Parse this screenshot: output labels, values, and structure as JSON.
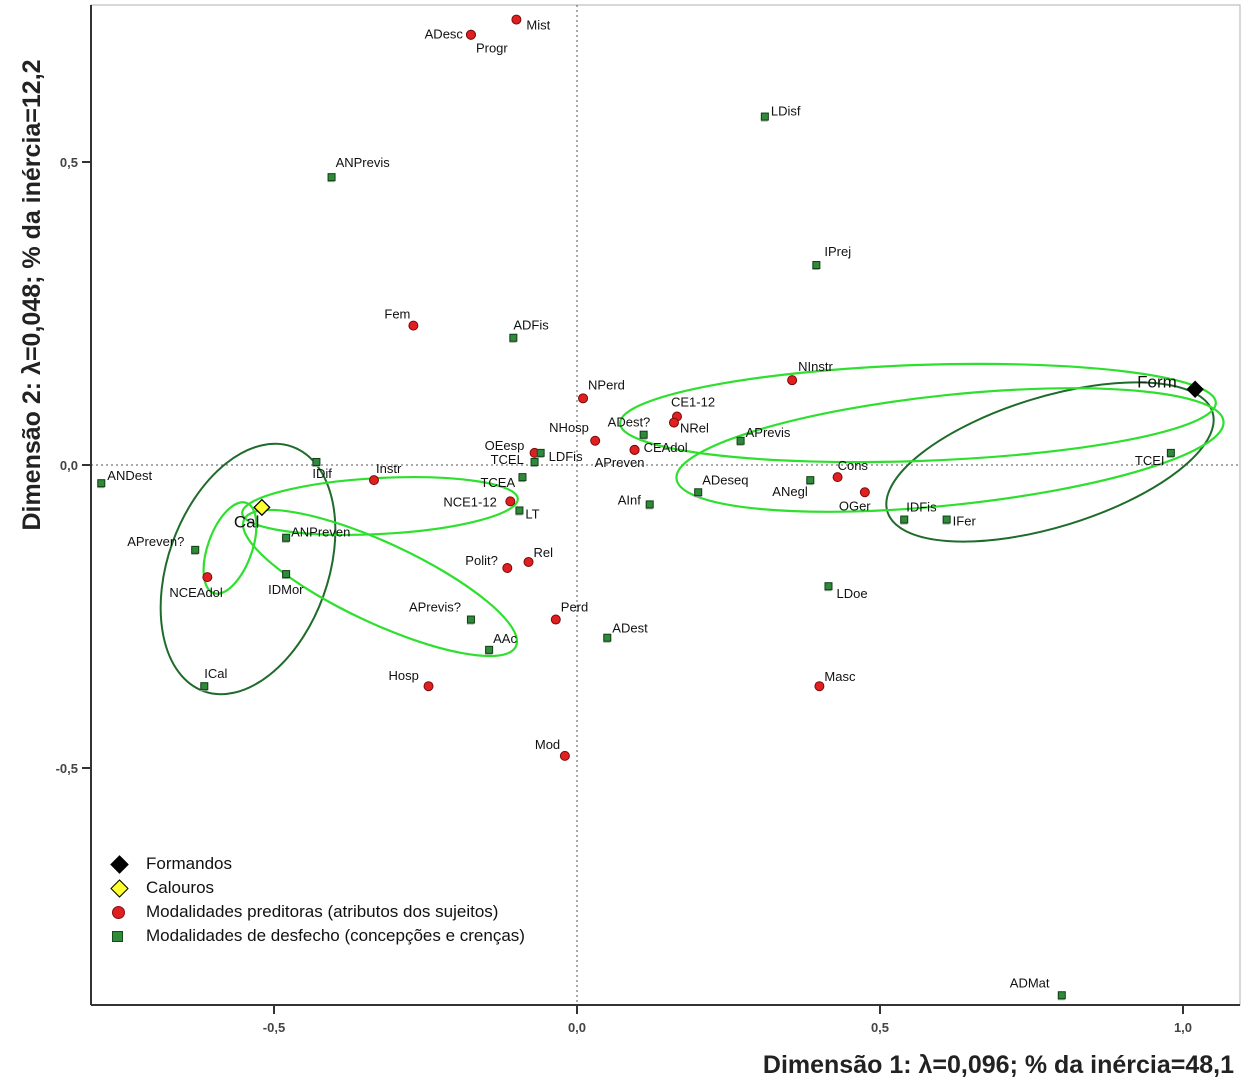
{
  "chart_data": {
    "type": "scatter",
    "xlabel": "Dimensão 1: λ=0,096; % da inércia=48,1",
    "ylabel": "Dimensão 2: λ=0,048; % da inércia=12,2",
    "xlim": [
      -0.8,
      1.1
    ],
    "ylim": [
      -0.9,
      0.76
    ],
    "xticks": [
      {
        "value": -0.5,
        "label": "-0,5"
      },
      {
        "value": 0,
        "label": "0,0"
      },
      {
        "value": 0.5,
        "label": "0,5"
      },
      {
        "value": 1.0,
        "label": "1,0"
      }
    ],
    "yticks": [
      {
        "value": 0.5,
        "label": "0,5"
      },
      {
        "value": 0,
        "label": "0,0"
      },
      {
        "value": -0.5,
        "label": "-0,5"
      }
    ],
    "legend": {
      "position": "bottom-left",
      "items": [
        {
          "label": "Formandos",
          "symbol": "diamond",
          "color": "#000000"
        },
        {
          "label": "Calouros",
          "symbol": "diamond",
          "color": "#ffff33"
        },
        {
          "label": "Modalidades preditoras (atributos dos sujeitos)",
          "symbol": "circle",
          "color": "#e02020"
        },
        {
          "label": "Modalidades de desfecho (concepções e crenças)",
          "symbol": "square",
          "color": "#2f8a3a"
        }
      ]
    },
    "series": [
      {
        "kind": "group",
        "color": "#000000",
        "points": [
          {
            "label": "Form",
            "x": 1.02,
            "y": 0.125
          }
        ]
      },
      {
        "kind": "group",
        "color": "#ffff33",
        "points": [
          {
            "label": "Cal",
            "x": -0.52,
            "y": -0.07
          }
        ]
      },
      {
        "kind": "predictor",
        "color": "#e02020",
        "points": [
          {
            "label": "Mist",
            "x": -0.1,
            "y": 0.735
          },
          {
            "label": "ADesc",
            "x": -0.175,
            "y": 0.71
          },
          {
            "label": "Progr",
            "x": -0.175,
            "y": 0.71
          },
          {
            "label": "Fem",
            "x": -0.27,
            "y": 0.23
          },
          {
            "label": "NPerd",
            "x": 0.01,
            "y": 0.11
          },
          {
            "label": "CE1-12",
            "x": 0.165,
            "y": 0.08
          },
          {
            "label": "NRel",
            "x": 0.16,
            "y": 0.07
          },
          {
            "label": "NInstr",
            "x": 0.355,
            "y": 0.14
          },
          {
            "label": "NHosp",
            "x": 0.03,
            "y": 0.04
          },
          {
            "label": "OEesp",
            "x": -0.07,
            "y": 0.02
          },
          {
            "label": "CEAdol",
            "x": 0.095,
            "y": 0.025
          },
          {
            "label": "APreven",
            "x": 0.095,
            "y": 0.025
          },
          {
            "label": "Instr",
            "x": -0.335,
            "y": -0.025
          },
          {
            "label": "NCE1-12",
            "x": -0.11,
            "y": -0.06
          },
          {
            "label": "Cons",
            "x": 0.43,
            "y": -0.02
          },
          {
            "label": "OGer",
            "x": 0.475,
            "y": -0.045
          },
          {
            "label": "Rel",
            "x": -0.08,
            "y": -0.16
          },
          {
            "label": "Polit?",
            "x": -0.115,
            "y": -0.17
          },
          {
            "label": "NCEAdol",
            "x": -0.61,
            "y": -0.185
          },
          {
            "label": "Perd",
            "x": -0.035,
            "y": -0.255
          },
          {
            "label": "Hosp",
            "x": -0.245,
            "y": -0.365
          },
          {
            "label": "Masc",
            "x": 0.4,
            "y": -0.365
          },
          {
            "label": "Mod",
            "x": -0.02,
            "y": -0.48
          }
        ]
      },
      {
        "kind": "outcome",
        "color": "#2f8a3a",
        "points": [
          {
            "label": "LDisf",
            "x": 0.31,
            "y": 0.575
          },
          {
            "label": "ANPrevis",
            "x": -0.405,
            "y": 0.475
          },
          {
            "label": "IPrej",
            "x": 0.395,
            "y": 0.33
          },
          {
            "label": "ADFis",
            "x": -0.105,
            "y": 0.21
          },
          {
            "label": "ADest?",
            "x": 0.11,
            "y": 0.05
          },
          {
            "label": "APrevis",
            "x": 0.27,
            "y": 0.04
          },
          {
            "label": "LDFis",
            "x": -0.06,
            "y": 0.02
          },
          {
            "label": "TCEL",
            "x": -0.07,
            "y": 0.005
          },
          {
            "label": "TCEA",
            "x": -0.09,
            "y": -0.02
          },
          {
            "label": "IDif",
            "x": -0.43,
            "y": 0.005
          },
          {
            "label": "ANDest",
            "x": -0.785,
            "y": -0.03
          },
          {
            "label": "AInf",
            "x": 0.12,
            "y": -0.065
          },
          {
            "label": "ADeseq",
            "x": 0.2,
            "y": -0.045
          },
          {
            "label": "ANegl",
            "x": 0.385,
            "y": -0.025
          },
          {
            "label": "TCEI",
            "x": 0.98,
            "y": 0.02
          },
          {
            "label": "IDFis",
            "x": 0.54,
            "y": -0.09
          },
          {
            "label": "IFer",
            "x": 0.61,
            "y": -0.09
          },
          {
            "label": "LT",
            "x": -0.095,
            "y": -0.075
          },
          {
            "label": "ANPreven",
            "x": -0.48,
            "y": -0.12
          },
          {
            "label": "APreven?",
            "x": -0.63,
            "y": -0.14
          },
          {
            "label": "IDMor",
            "x": -0.48,
            "y": -0.18
          },
          {
            "label": "LDoe",
            "x": 0.415,
            "y": -0.2
          },
          {
            "label": "APrevis?",
            "x": -0.175,
            "y": -0.255
          },
          {
            "label": "ADest",
            "x": 0.05,
            "y": -0.285
          },
          {
            "label": "AAc",
            "x": -0.145,
            "y": -0.305
          },
          {
            "label": "ICal",
            "x": -0.615,
            "y": -0.365
          },
          {
            "label": "ADMat",
            "x": 0.8,
            "y": -0.875
          }
        ]
      }
    ]
  }
}
